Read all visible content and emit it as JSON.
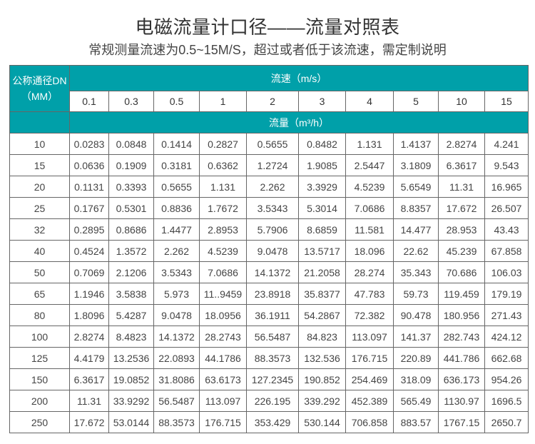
{
  "title": "电磁流量计口径——流量对照表",
  "subtitle": "常规测量流速为0.5~15M/S，超过或者低于该流速，需定制说明",
  "table": {
    "dn_header_line1": "公称通径DN",
    "dn_header_line2": "（MM）",
    "velocity_header": "流速（m/s）",
    "flow_header": "流量（m³/h）",
    "velocities": [
      "0.1",
      "0.3",
      "0.5",
      "1",
      "2",
      "3",
      "4",
      "5",
      "10",
      "15"
    ],
    "rows": [
      {
        "dn": "10",
        "values": [
          "0.0283",
          "0.0848",
          "0.1414",
          "0.2827",
          "0.5655",
          "0.8482",
          "1.131",
          "1.4137",
          "2.8274",
          "4.241"
        ]
      },
      {
        "dn": "15",
        "values": [
          "0.0636",
          "0.1909",
          "0.3181",
          "0.6362",
          "1.2724",
          "1.9085",
          "2.5447",
          "3.1809",
          "6.3617",
          "9.543"
        ]
      },
      {
        "dn": "20",
        "values": [
          "0.1131",
          "0.3393",
          "0.5655",
          "1.131",
          "2.262",
          "3.3929",
          "4.5239",
          "5.6549",
          "11.31",
          "16.965"
        ]
      },
      {
        "dn": "25",
        "values": [
          "0.1767",
          "0.5301",
          "0.8836",
          "1.7672",
          "3.5343",
          "5.3014",
          "7.0686",
          "8.8357",
          "17.672",
          "26.507"
        ]
      },
      {
        "dn": "32",
        "values": [
          "0.2895",
          "0.8686",
          "1.4477",
          "2.8953",
          "5.7906",
          "8.6859",
          "11.581",
          "14.477",
          "28.953",
          "43.43"
        ]
      },
      {
        "dn": "40",
        "values": [
          "0.4524",
          "1.3572",
          "2.262",
          "4.5239",
          "9.0478",
          "13.5717",
          "18.096",
          "22.62",
          "45.239",
          "67.858"
        ]
      },
      {
        "dn": "50",
        "values": [
          "0.7069",
          "2.1206",
          "3.5343",
          "7.0686",
          "14.1372",
          "21.2058",
          "28.274",
          "35.343",
          "70.686",
          "106.03"
        ]
      },
      {
        "dn": "65",
        "values": [
          "1.1946",
          "3.5838",
          "5.973",
          "11..9459",
          "23.8918",
          "35.8377",
          "47.783",
          "59.73",
          "119.459",
          "179.19"
        ]
      },
      {
        "dn": "80",
        "values": [
          "1.8096",
          "5.4287",
          "9.0478",
          "18.0956",
          "36.1911",
          "54.2867",
          "72.382",
          "90.478",
          "180.956",
          "271.43"
        ]
      },
      {
        "dn": "100",
        "values": [
          "2.8274",
          "8.4823",
          "14.1372",
          "28.2743",
          "56.5487",
          "84.823",
          "113.097",
          "141.37",
          "282.743",
          "424.12"
        ]
      },
      {
        "dn": "125",
        "values": [
          "4.4179",
          "13.2536",
          "22.0893",
          "44.1786",
          "88.3573",
          "132.536",
          "176.715",
          "220.89",
          "441.786",
          "662.68"
        ]
      },
      {
        "dn": "150",
        "values": [
          "6.3617",
          "19.0852",
          "31.8086",
          "63.6173",
          "127.2345",
          "190.852",
          "254.469",
          "318.09",
          "636.173",
          "954.26"
        ]
      },
      {
        "dn": "200",
        "values": [
          "11.31",
          "33.9292",
          "56.5487",
          "113.097",
          "226.195",
          "339.292",
          "452.389",
          "565.49",
          "1130.97",
          "1696.5"
        ]
      },
      {
        "dn": "250",
        "values": [
          "17.672",
          "53.0144",
          "88.3573",
          "176.715",
          "353.429",
          "530.144",
          "706.858",
          "883.57",
          "1767.15",
          "2650.7"
        ]
      }
    ]
  },
  "colors": {
    "header_bg": "#00a0a9",
    "border": "#666666"
  }
}
